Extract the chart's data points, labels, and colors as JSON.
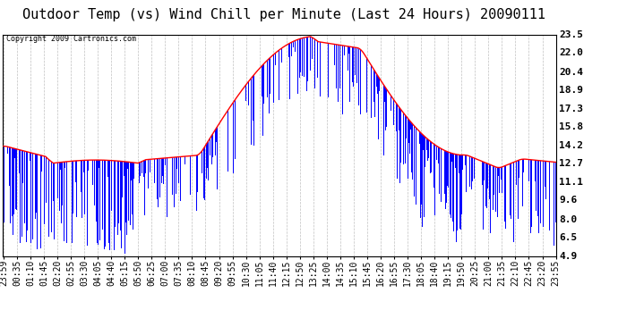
{
  "title": "Outdoor Temp (vs) Wind Chill per Minute (Last 24 Hours) 20090111",
  "copyright_text": "Copyright 2009 Cartronics.com",
  "yticks": [
    4.9,
    6.5,
    8.0,
    9.6,
    11.1,
    12.7,
    14.2,
    15.8,
    17.3,
    18.9,
    20.4,
    22.0,
    23.5
  ],
  "ymin": 4.9,
  "ymax": 23.5,
  "xlabels": [
    "23:59",
    "00:35",
    "01:10",
    "01:45",
    "02:20",
    "02:55",
    "03:30",
    "04:05",
    "04:40",
    "05:15",
    "05:50",
    "06:25",
    "07:00",
    "07:35",
    "08:10",
    "08:45",
    "09:20",
    "09:55",
    "10:30",
    "11:05",
    "11:40",
    "12:15",
    "12:50",
    "13:25",
    "14:00",
    "14:35",
    "15:10",
    "15:45",
    "16:20",
    "16:55",
    "17:30",
    "18:05",
    "18:40",
    "19:15",
    "19:50",
    "20:25",
    "21:00",
    "21:35",
    "22:10",
    "22:45",
    "23:20",
    "23:55"
  ],
  "background_color": "#ffffff",
  "plot_bg_color": "#ffffff",
  "grid_color": "#b0b0b0",
  "bar_color": "#0000ff",
  "line_color": "#ff0000",
  "title_fontsize": 11,
  "tick_fontsize": 7,
  "n_points": 1440
}
